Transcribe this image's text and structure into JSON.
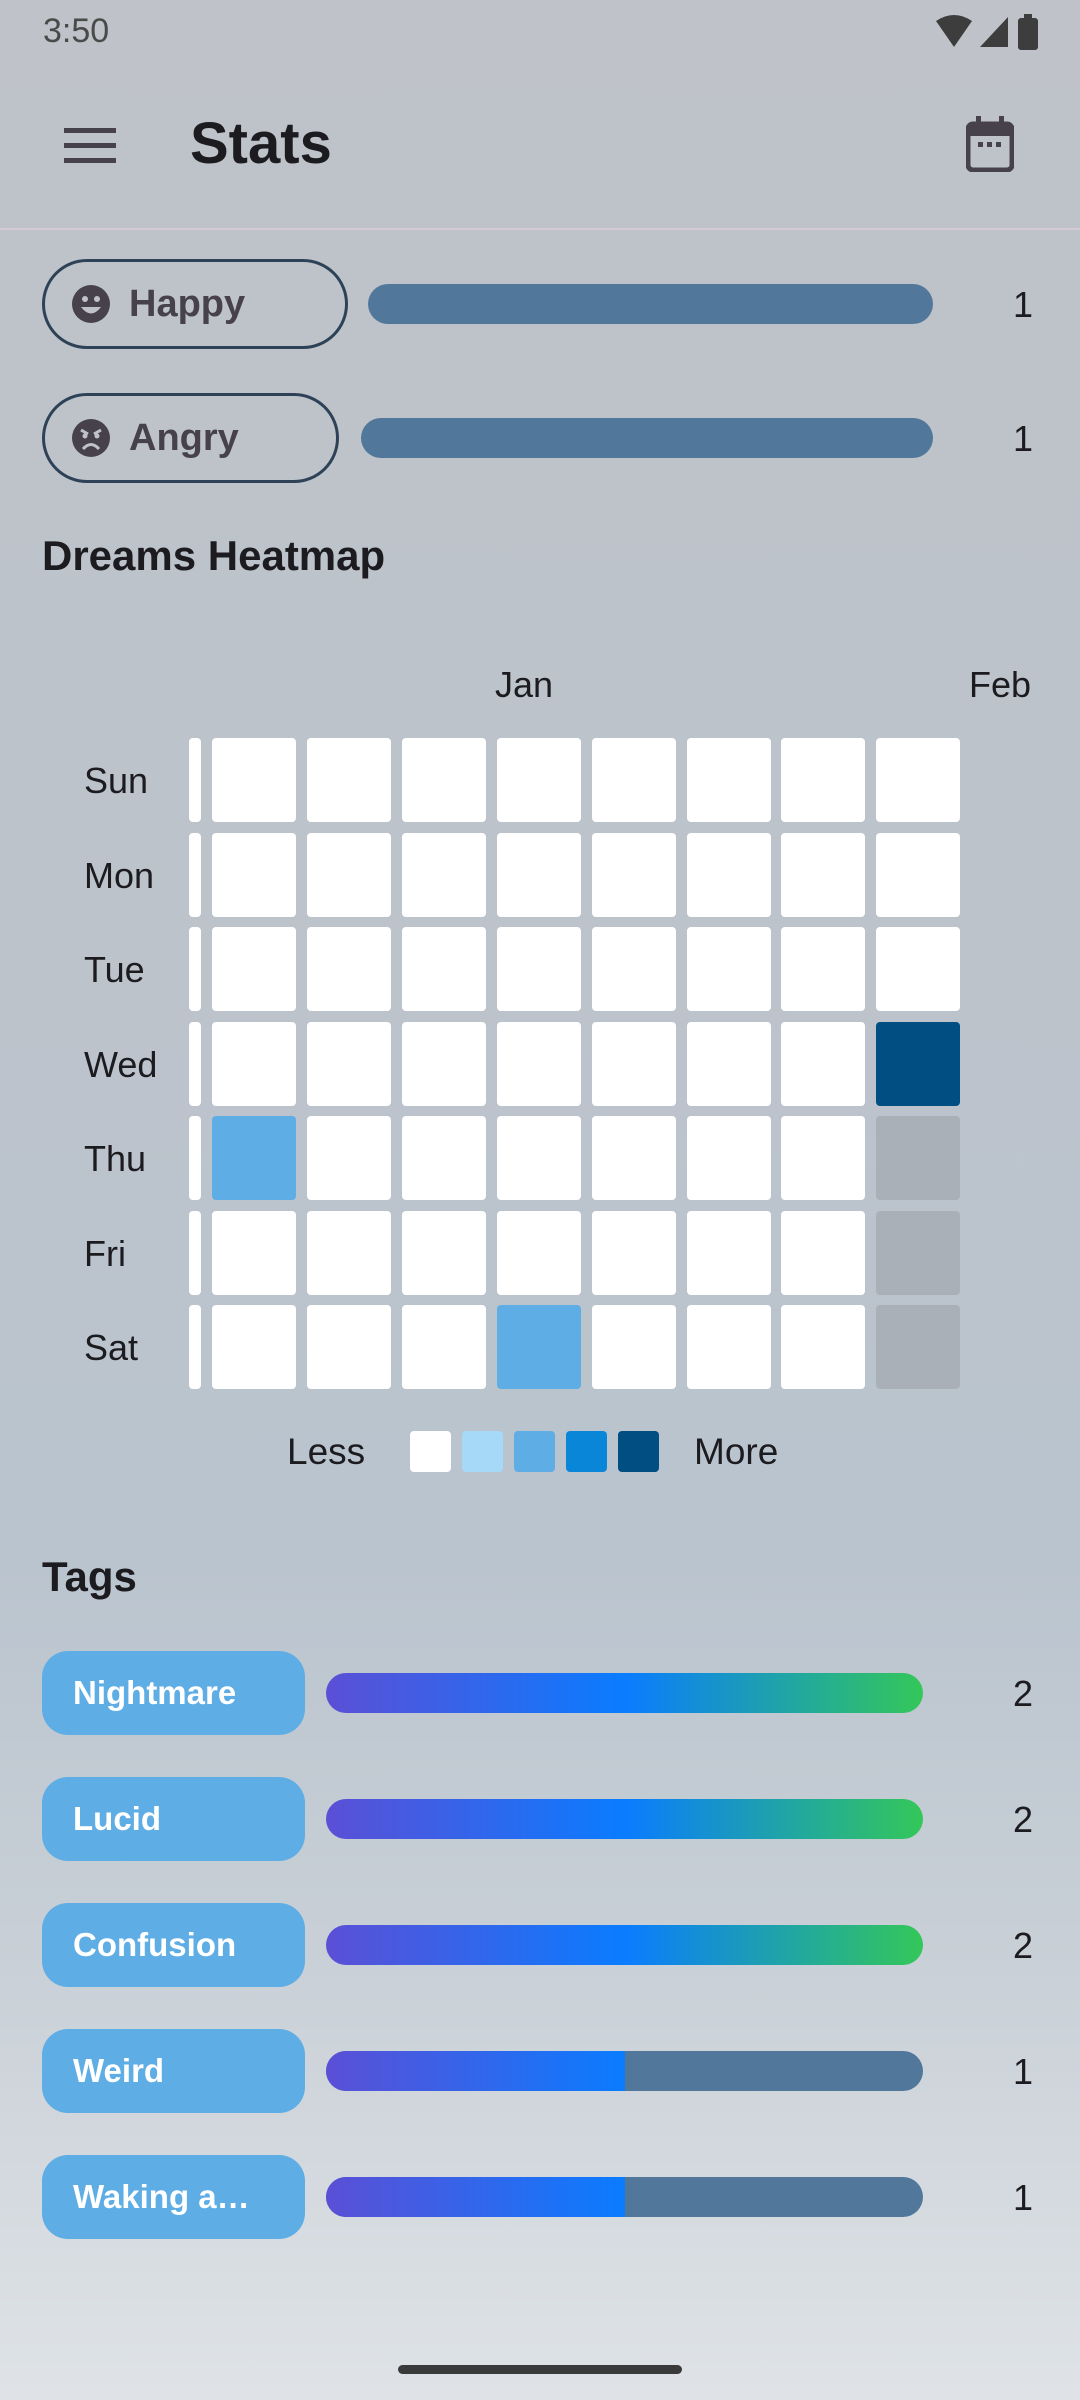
{
  "status": {
    "time": "3:50"
  },
  "appbar": {
    "title": "Stats",
    "menu_icon": "menu-icon",
    "calendar_icon": "calendar-icon"
  },
  "moods": [
    {
      "label": "Happy",
      "icon": "happy-face-icon",
      "count": "1",
      "fraction": 1.0
    },
    {
      "label": "Angry",
      "icon": "angry-face-icon",
      "count": "1",
      "fraction": 1.0
    }
  ],
  "heatmap": {
    "title": "Dreams Heatmap",
    "months": [
      "Jan",
      "Feb"
    ],
    "days": [
      "Sun",
      "Mon",
      "Tue",
      "Wed",
      "Thu",
      "Fri",
      "Sat"
    ],
    "colors": {
      "empty": "#ffffff",
      "l1": "#a6d8f8",
      "l2": "#5eade4",
      "l3": "#0a86d8",
      "l4": "#004e82",
      "future": "#aab0b8"
    },
    "grid": [
      [
        0,
        0,
        0,
        0,
        0,
        0,
        0,
        0
      ],
      [
        0,
        0,
        0,
        0,
        0,
        0,
        0,
        0
      ],
      [
        0,
        0,
        0,
        0,
        0,
        0,
        0,
        0
      ],
      [
        0,
        0,
        0,
        0,
        0,
        0,
        0,
        4
      ],
      [
        2,
        0,
        0,
        0,
        0,
        0,
        0,
        -1
      ],
      [
        0,
        0,
        0,
        0,
        0,
        0,
        0,
        -1
      ],
      [
        0,
        0,
        0,
        2,
        0,
        0,
        0,
        -1
      ]
    ],
    "legend": {
      "less": "Less",
      "more": "More"
    }
  },
  "tags": {
    "title": "Tags",
    "items": [
      {
        "label": "Nightmare",
        "count": "2",
        "fraction": 1.0
      },
      {
        "label": "Lucid",
        "count": "2",
        "fraction": 1.0
      },
      {
        "label": "Confusion",
        "count": "2",
        "fraction": 1.0
      },
      {
        "label": "Weird",
        "count": "1",
        "fraction": 0.5
      },
      {
        "label": "Waking a…",
        "count": "1",
        "fraction": 0.5
      }
    ],
    "gradient": [
      "#5b4fd6",
      "#0a7cff",
      "#34c759"
    ],
    "track_color": "#51779a"
  }
}
